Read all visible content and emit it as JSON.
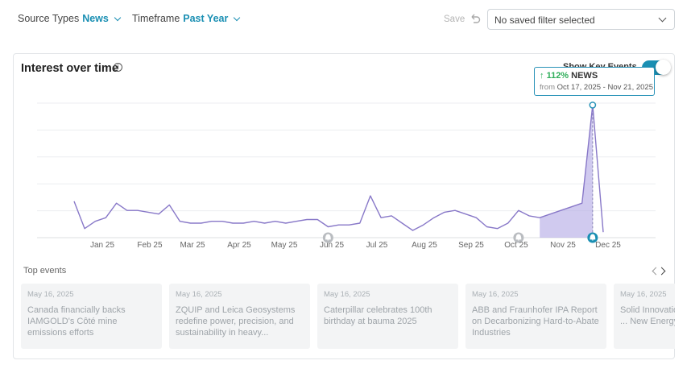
{
  "filters": {
    "source_label": "Source Types",
    "source_value": "News",
    "timeframe_label": "Timeframe",
    "timeframe_value": "Past Year",
    "save_label": "Save",
    "saved_filter_placeholder": "No saved filter selected"
  },
  "card": {
    "title": "Interest over time",
    "info_icon": "info-icon",
    "key_events_label": "Show Key Events",
    "key_events_on": true
  },
  "tooltip": {
    "arrow": "↑",
    "change": "112%",
    "source": "NEWS",
    "from_label": "from",
    "range": "Oct 17, 2025 - Nov 21, 2025"
  },
  "chart_data": {
    "type": "line",
    "x_tick_labels": [
      "Jan 25",
      "Feb 25",
      "Mar 25",
      "Apr 25",
      "May 25",
      "Jun 25",
      "Jul 25",
      "Aug 25",
      "Sep 25",
      "Oct 25",
      "Nov 25",
      "Dec 25"
    ],
    "ylim": [
      0,
      100
    ],
    "grid": true,
    "series_color": "#8878c8",
    "highlight_color": "#b7aee6",
    "values": [
      20,
      5,
      9,
      11,
      19,
      15,
      15,
      14,
      13,
      18,
      9,
      8,
      8,
      9,
      9,
      8,
      8,
      9,
      8,
      9,
      8,
      9,
      10,
      10,
      6,
      7,
      7,
      8,
      23,
      11,
      12,
      8,
      4,
      7,
      11,
      14,
      15,
      13,
      11,
      6,
      5,
      8,
      15,
      12,
      11,
      13,
      15,
      17,
      19,
      73,
      3
    ],
    "highlight_start_index": 44,
    "highlight_end_index": 49,
    "peak_index": 49,
    "event_marker_indices": [
      24,
      42,
      49
    ]
  },
  "top_events": {
    "label": "Top events",
    "items": [
      {
        "date": "May 16, 2025",
        "title": "Canada financially backs IAMGOLD's Côté mine emissions efforts"
      },
      {
        "date": "May 16, 2025",
        "title": "ZQUIP and Leica Geosystems redefine power, precision, and sustainability in heavy..."
      },
      {
        "date": "May 16, 2025",
        "title": "Caterpillar celebrates 100th birthday at bauma 2025"
      },
      {
        "date": "May 16, 2025",
        "title": "ABB and Fraunhofer IPA Report on Decarbonizing Hard-to-Abate Industries"
      },
      {
        "date": "May 16, 2025",
        "title": "Solid Innovation for Tomorrow: ... New Energy"
      }
    ]
  }
}
